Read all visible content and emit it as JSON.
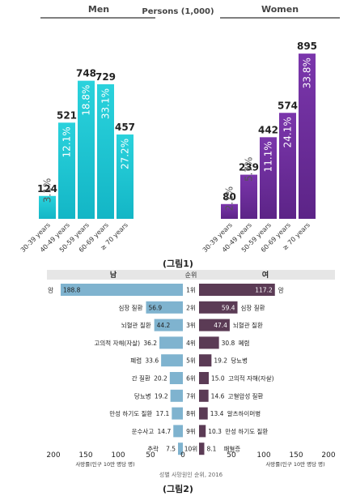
{
  "figure1": {
    "caption": "(그림1)",
    "unit_label": "Persons  (1,000)",
    "colors": {
      "men": "#1fc3d1",
      "women": "#6a2c99",
      "header_bar": "#555555"
    },
    "chart_data": [
      {
        "type": "bar",
        "title": "Men",
        "categories": [
          "30-39 years",
          "40-49 years",
          "50-59 years",
          "60-69 years",
          "≥ 70 years"
        ],
        "values": [
          124,
          521,
          748,
          729,
          457
        ],
        "percent_labels": [
          "3.1%",
          "12.1%",
          "18.8%",
          "33.1%",
          "27.2%"
        ],
        "ylim": [
          0,
          900
        ]
      },
      {
        "type": "bar",
        "title": "Women",
        "categories": [
          "30-39 years",
          "40-49 years",
          "50-59 years",
          "60-69 years",
          "≥ 70 years"
        ],
        "values": [
          80,
          239,
          442,
          574,
          895
        ],
        "percent_labels": [
          "2.1%",
          "5.7%",
          "11.1%",
          "24.1%",
          "33.8%"
        ],
        "ylim": [
          0,
          900
        ]
      }
    ]
  },
  "figure2": {
    "caption": "(그림2)",
    "header_left": "남",
    "header_mid": "순위",
    "header_right": "여",
    "source": "성별 사망원인 순위, 2016",
    "xlabel_left": "사망률(인구 10만 명당 명)",
    "xlabel_right": "사망률(인구 10만 명당 명)",
    "colors": {
      "men": "#7fb3cf",
      "women": "#5b3b55",
      "header_bg": "#e6e6e6"
    },
    "chart_data": {
      "type": "bar",
      "orientation": "horizontal-butterfly",
      "ranks": [
        "1위",
        "2위",
        "3위",
        "4위",
        "5위",
        "6위",
        "7위",
        "8위",
        "9위",
        "10위"
      ],
      "xlim": [
        0,
        200
      ],
      "ticks": [
        "200",
        "150",
        "100",
        "50",
        "0",
        "50",
        "100",
        "150",
        "200"
      ],
      "series": [
        {
          "name": "남",
          "causes": [
            "암",
            "심장 질환",
            "뇌혈관 질환",
            "고의적 자해(자살)",
            "폐렴",
            "간 질환",
            "당뇨병",
            "만성 하기도 질환",
            "운수사고",
            "추락"
          ],
          "values": [
            188.8,
            56.9,
            44.2,
            36.2,
            33.6,
            20.2,
            19.2,
            17.1,
            14.7,
            7.5
          ],
          "value_labels": [
            "188.8",
            "56.9",
            "44.2",
            "36.2",
            "33.6",
            "20.2",
            "19.2",
            "17.1",
            "14.7",
            "7.5"
          ]
        },
        {
          "name": "여",
          "causes": [
            "암",
            "심장 질환",
            "뇌혈관 질환",
            "폐렴",
            "당뇨병",
            "고의적 자해(자살)",
            "고혈압성 질환",
            "알츠하이머병",
            "만성 하기도 질환",
            "패혈증"
          ],
          "values": [
            117.2,
            59.4,
            47.4,
            30.8,
            19.2,
            15.0,
            14.6,
            13.4,
            10.3,
            8.1
          ],
          "value_labels": [
            "117.2",
            "59.4",
            "47.4",
            "30.8",
            "19.2",
            "15.0",
            "14.6",
            "13.4",
            "10.3",
            "8.1"
          ]
        }
      ]
    }
  }
}
